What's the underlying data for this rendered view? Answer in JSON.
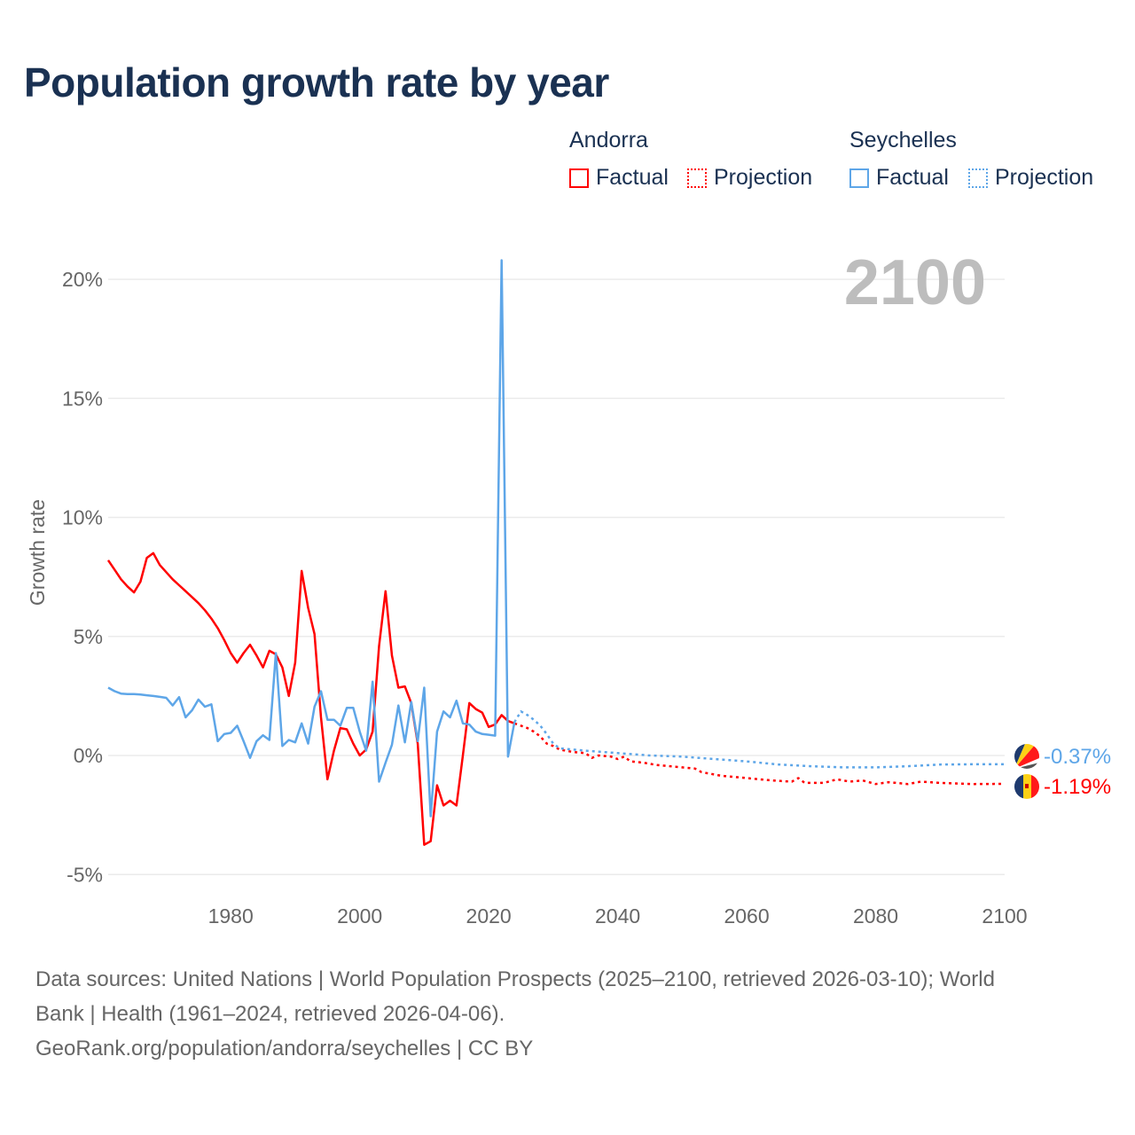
{
  "title": "Population growth rate by year",
  "legend": {
    "groups": [
      {
        "name": "Andorra",
        "factual": "Factual",
        "projection": "Projection",
        "color": "#ff0000"
      },
      {
        "name": "Seychelles",
        "factual": "Factual",
        "projection": "Projection",
        "color": "#5ea6e8"
      }
    ]
  },
  "year_label": "2100",
  "footer": {
    "line1": "Data sources: United Nations | World Population Prospects (2025–2100, retrieved 2026-03-10); World",
    "line2": "Bank | Health (1961–2024, retrieved 2026-04-06).",
    "line3": "GeoRank.org/population/andorra/seychelles | CC BY"
  },
  "chart_data": {
    "type": "line",
    "title": "Population growth rate by year",
    "xlabel": "",
    "ylabel": "Growth rate",
    "xlim": [
      1961,
      2100
    ],
    "ylim": [
      -5,
      21
    ],
    "xticks": [
      1980,
      2000,
      2020,
      2040,
      2060,
      2080,
      2100
    ],
    "yticks": [
      -5,
      0,
      5,
      10,
      15,
      20
    ],
    "ytick_labels": [
      "-5%",
      "0%",
      "5%",
      "10%",
      "15%",
      "20%"
    ],
    "grid": true,
    "legend_position": "top-right",
    "end_labels": {
      "Andorra": "-1.19%",
      "Seychelles": "-0.37%"
    },
    "series": [
      {
        "name": "Andorra Factual",
        "color": "#ff0000",
        "dashed": false,
        "start": 1961,
        "values": [
          8.2,
          7.8,
          7.4,
          7.1,
          6.85,
          7.3,
          8.3,
          8.5,
          8.0,
          7.7,
          7.4,
          7.15,
          6.9,
          6.65,
          6.4,
          6.1,
          5.75,
          5.35,
          4.85,
          4.3,
          3.9,
          4.3,
          4.65,
          4.2,
          3.7,
          4.4,
          4.25,
          3.7,
          2.5,
          3.9,
          7.75,
          6.2,
          5.1,
          1.6,
          -1.0,
          0.2,
          1.15,
          1.1,
          0.5,
          0.0,
          0.25,
          1.0,
          4.6,
          6.9,
          4.2,
          2.85,
          2.9,
          2.2,
          0.5,
          -3.75,
          -3.6,
          -1.25,
          -2.1,
          -1.9,
          -2.1,
          0.0,
          2.2,
          1.95,
          1.8,
          1.2,
          1.3,
          1.7,
          1.45,
          1.35
        ]
      },
      {
        "name": "Andorra Projection",
        "color": "#ff0000",
        "dashed": true,
        "points": [
          [
            2024,
            1.35
          ],
          [
            2025,
            1.25
          ],
          [
            2026,
            1.15
          ],
          [
            2027,
            1.0
          ],
          [
            2028,
            0.8
          ],
          [
            2029,
            0.5
          ],
          [
            2030,
            0.4
          ],
          [
            2031,
            0.25
          ],
          [
            2033,
            0.15
          ],
          [
            2035,
            0.1
          ],
          [
            2036,
            -0.1
          ],
          [
            2037,
            0.0
          ],
          [
            2039,
            -0.05
          ],
          [
            2040,
            -0.15
          ],
          [
            2041,
            -0.05
          ],
          [
            2042,
            -0.25
          ],
          [
            2044,
            -0.3
          ],
          [
            2046,
            -0.4
          ],
          [
            2050,
            -0.5
          ],
          [
            2052,
            -0.55
          ],
          [
            2053,
            -0.7
          ],
          [
            2056,
            -0.85
          ],
          [
            2060,
            -0.95
          ],
          [
            2064,
            -1.05
          ],
          [
            2067,
            -1.1
          ],
          [
            2068,
            -0.95
          ],
          [
            2069,
            -1.15
          ],
          [
            2072,
            -1.15
          ],
          [
            2074,
            -1.0
          ],
          [
            2076,
            -1.1
          ],
          [
            2078,
            -1.05
          ],
          [
            2080,
            -1.2
          ],
          [
            2082,
            -1.12
          ],
          [
            2085,
            -1.2
          ],
          [
            2087,
            -1.1
          ],
          [
            2090,
            -1.15
          ],
          [
            2095,
            -1.2
          ],
          [
            2100,
            -1.19
          ]
        ]
      },
      {
        "name": "Seychelles Factual",
        "color": "#5ea6e8",
        "dashed": false,
        "start": 1961,
        "values": [
          2.85,
          2.7,
          2.6,
          2.58,
          2.58,
          2.56,
          2.53,
          2.5,
          2.46,
          2.42,
          2.1,
          2.45,
          1.6,
          1.9,
          2.35,
          2.05,
          2.15,
          0.6,
          0.9,
          0.95,
          1.25,
          0.6,
          -0.1,
          0.6,
          0.85,
          0.65,
          4.3,
          0.4,
          0.65,
          0.55,
          1.35,
          0.5,
          2.05,
          2.7,
          1.5,
          1.5,
          1.25,
          2.0,
          2.0,
          1.0,
          0.2,
          3.1,
          -1.1,
          -0.3,
          0.45,
          2.1,
          0.55,
          2.25,
          0.6,
          2.85,
          -2.55,
          1.0,
          1.85,
          1.6,
          2.3,
          1.35,
          1.3,
          1.0,
          0.9,
          0.87,
          0.83,
          20.8,
          -0.05,
          1.4
        ]
      },
      {
        "name": "Seychelles Projection",
        "color": "#5ea6e8",
        "dashed": true,
        "points": [
          [
            2024,
            1.4
          ],
          [
            2025,
            1.85
          ],
          [
            2026,
            1.7
          ],
          [
            2027,
            1.5
          ],
          [
            2028,
            1.25
          ],
          [
            2029,
            0.9
          ],
          [
            2030,
            0.5
          ],
          [
            2031,
            0.3
          ],
          [
            2035,
            0.2
          ],
          [
            2040,
            0.1
          ],
          [
            2045,
            0.0
          ],
          [
            2050,
            -0.05
          ],
          [
            2055,
            -0.15
          ],
          [
            2060,
            -0.25
          ],
          [
            2065,
            -0.38
          ],
          [
            2070,
            -0.45
          ],
          [
            2075,
            -0.5
          ],
          [
            2080,
            -0.5
          ],
          [
            2085,
            -0.45
          ],
          [
            2090,
            -0.38
          ],
          [
            2095,
            -0.37
          ],
          [
            2100,
            -0.37
          ]
        ]
      }
    ]
  }
}
